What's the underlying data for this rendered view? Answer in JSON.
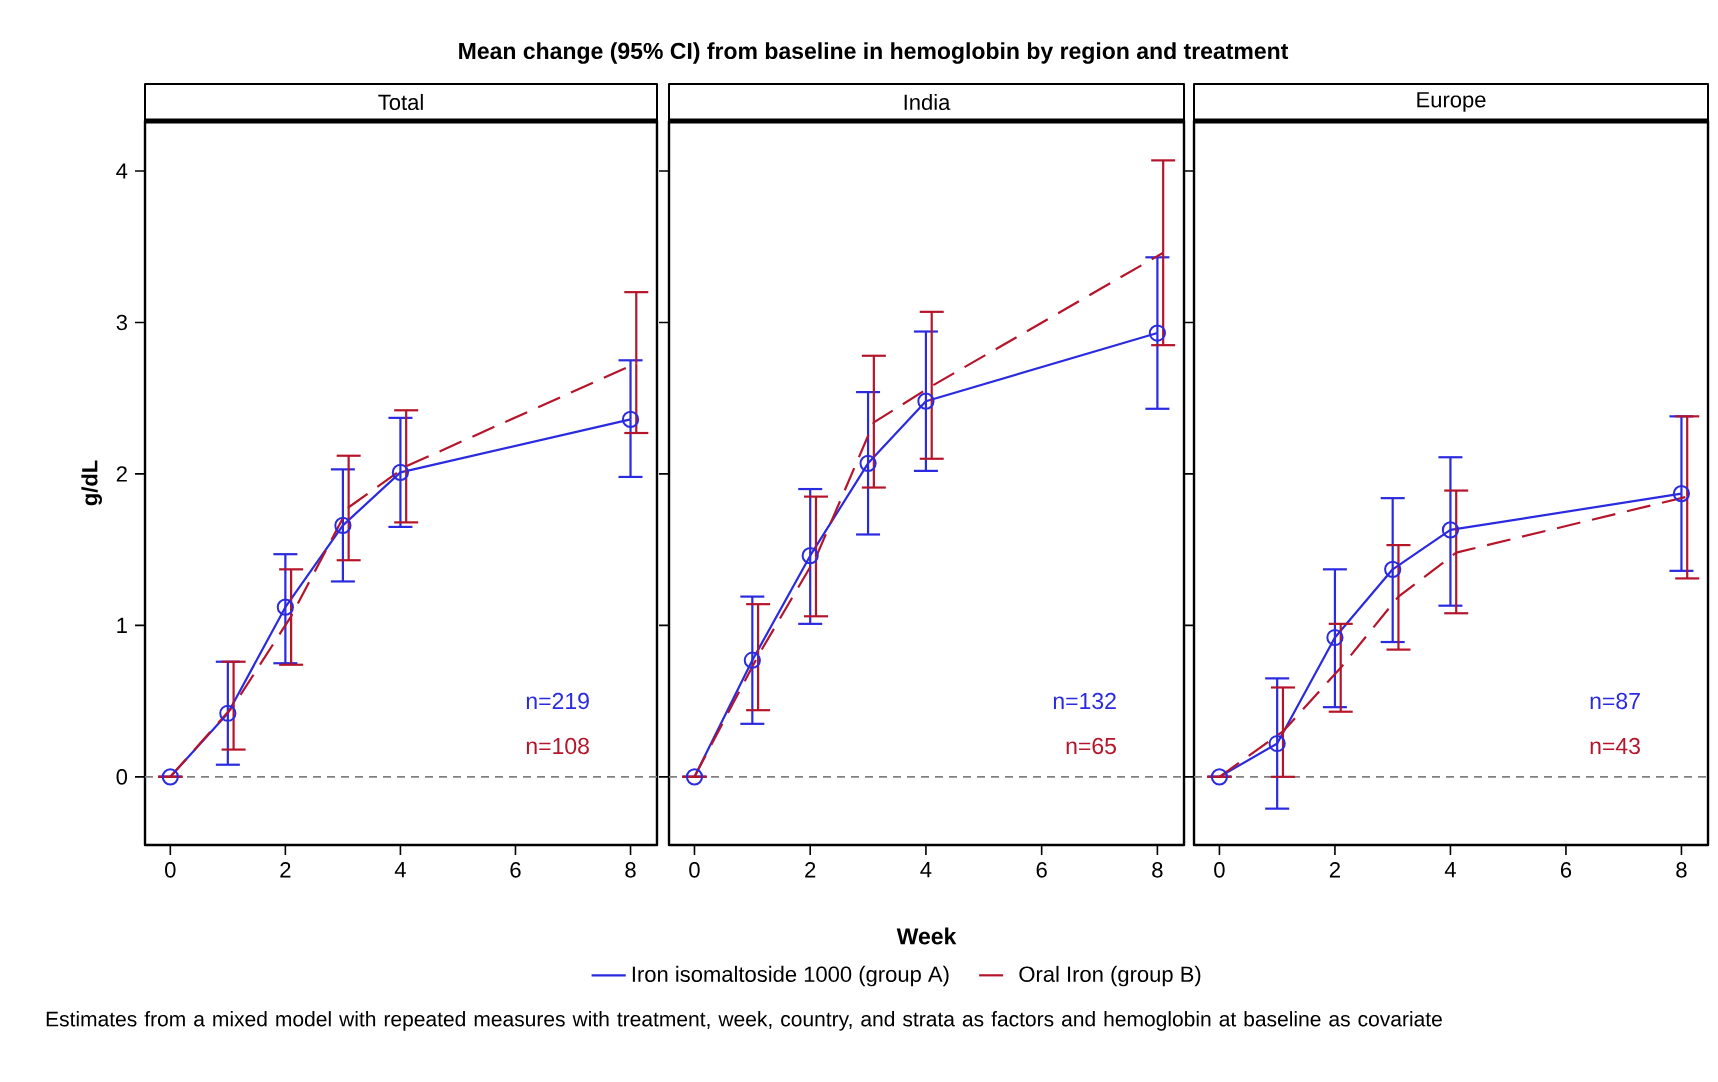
{
  "chart_data": [
    {
      "type": "line",
      "title": "Mean change (95% CI) from baseline in hemoglobin by region and treatment",
      "subtitle": "Total",
      "ylabel": "g/dL",
      "xlim": [
        -0.44,
        8.46
      ],
      "xticks": [
        0,
        2,
        4,
        6,
        8
      ],
      "ylim": [
        -0.45,
        4.33
      ],
      "yticks": [
        0,
        1,
        2,
        3,
        4
      ],
      "legend": "bottom",
      "ref_lines": [
        {
          "axis": "y",
          "value": 0,
          "color": "#808080",
          "line_style": "dashed"
        }
      ],
      "annotations": [
        "n=219",
        "n=108",
        "Estimates from a mixed model with repeated measures with treatment, week, country, and strata as factors and hemoglobin at baseline as covariate"
      ],
      "series": [
        {
          "name": "Iron isomaltoside 1000 (group A)",
          "color": "#2a2ae0",
          "marker": "circle",
          "line_style": "solid",
          "x": [
            0,
            1,
            2,
            3,
            4,
            8
          ],
          "values": [
            0,
            0.42,
            1.12,
            1.66,
            2.01,
            2.36
          ],
          "errors": [
            null,
            [
              0.08,
              0.76
            ],
            [
              0.75,
              1.47
            ],
            [
              1.29,
              2.03
            ],
            [
              1.65,
              2.37
            ],
            [
              1.98,
              2.75
            ]
          ]
        },
        {
          "name": "Oral Iron (group B)",
          "color": "#b5152b",
          "marker": "none",
          "line_style": "dashed",
          "x": [
            0,
            1.1,
            2.1,
            3.1,
            4.1,
            8.1
          ],
          "values": [
            0,
            0.47,
            1.06,
            1.78,
            2.05,
            2.73
          ],
          "errors": [
            null,
            [
              0.18,
              0.76
            ],
            [
              0.74,
              1.37
            ],
            [
              1.43,
              2.12
            ],
            [
              1.68,
              2.42
            ],
            [
              2.27,
              3.2
            ]
          ]
        }
      ]
    },
    {
      "type": "line",
      "subtitle": "India",
      "xlabel": "Week",
      "xlim": [
        -0.44,
        8.46
      ],
      "xticks": [
        0,
        2,
        4,
        6,
        8
      ],
      "ylim": [
        -0.45,
        4.33
      ],
      "yticks": [
        0,
        1,
        2,
        3,
        4
      ],
      "tick_labels": "x",
      "ref_lines": [
        {
          "axis": "y",
          "value": 0,
          "color": "#808080",
          "line_style": "dashed"
        }
      ],
      "annotations": [
        "n=132",
        "n=65"
      ],
      "series": [
        {
          "color": "#2a2ae0",
          "marker": "circle",
          "line_style": "solid",
          "x": [
            0,
            1,
            2,
            3,
            4,
            8
          ],
          "values": [
            0,
            0.77,
            1.46,
            2.07,
            2.48,
            2.93
          ],
          "errors": [
            null,
            [
              0.35,
              1.19
            ],
            [
              1.01,
              1.9
            ],
            [
              1.6,
              2.54
            ],
            [
              2.02,
              2.94
            ],
            [
              2.43,
              3.43
            ]
          ]
        },
        {
          "color": "#b5152b",
          "marker": "none",
          "line_style": "dashed",
          "x": [
            0,
            1.1,
            2.1,
            3.1,
            4.1,
            8.1
          ],
          "values": [
            0,
            0.8,
            1.45,
            2.34,
            2.58,
            3.46
          ],
          "errors": [
            null,
            [
              0.44,
              1.14
            ],
            [
              1.06,
              1.85
            ],
            [
              1.91,
              2.78
            ],
            [
              2.1,
              3.07
            ],
            [
              2.85,
              4.07
            ]
          ]
        }
      ]
    },
    {
      "type": "line",
      "subtitle": "Europe",
      "xlim": [
        -0.44,
        8.46
      ],
      "xticks": [
        0,
        2,
        4,
        6,
        8
      ],
      "ylim": [
        -0.45,
        4.33
      ],
      "yticks": [
        0,
        1,
        2,
        3,
        4
      ],
      "tick_labels": "x",
      "ref_lines": [
        {
          "axis": "y",
          "value": 0,
          "color": "#808080",
          "line_style": "dashed"
        }
      ],
      "annotations": [
        "n=87",
        "n=43"
      ],
      "series": [
        {
          "color": "#2a2ae0",
          "marker": "circle",
          "line_style": "solid",
          "x": [
            0,
            1,
            2,
            3,
            4,
            8
          ],
          "values": [
            0,
            0.22,
            0.92,
            1.37,
            1.63,
            1.87
          ],
          "errors": [
            null,
            [
              -0.21,
              0.65
            ],
            [
              0.46,
              1.37
            ],
            [
              0.89,
              1.84
            ],
            [
              1.13,
              2.11
            ],
            [
              1.36,
              2.38
            ]
          ]
        },
        {
          "color": "#b5152b",
          "marker": "none",
          "line_style": "dashed",
          "x": [
            0,
            1.1,
            2.1,
            3.1,
            4.1,
            8.1
          ],
          "values": [
            0,
            0.3,
            0.72,
            1.19,
            1.48,
            1.85
          ],
          "errors": [
            null,
            [
              0.0,
              0.59
            ],
            [
              0.43,
              1.01
            ],
            [
              0.84,
              1.53
            ],
            [
              1.08,
              1.89
            ],
            [
              1.31,
              2.38
            ]
          ]
        }
      ]
    }
  ]
}
